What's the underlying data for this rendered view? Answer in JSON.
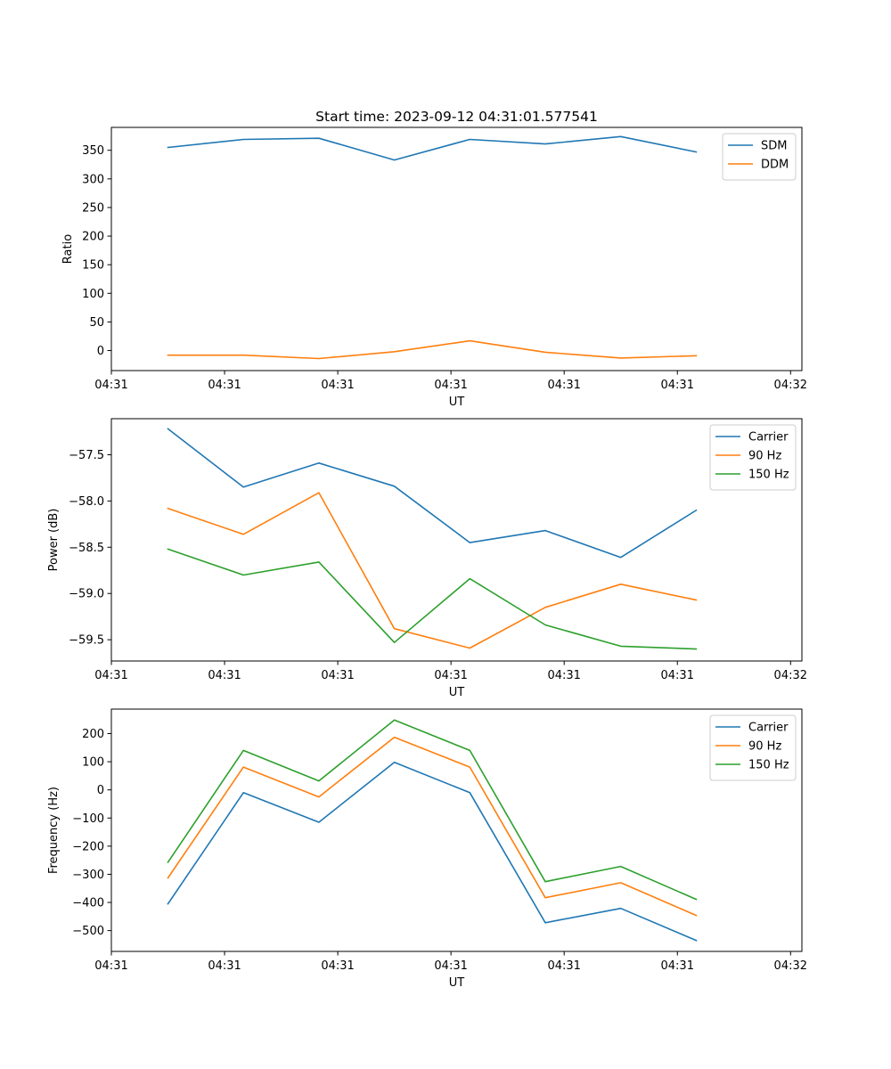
{
  "figure": {
    "title": "Start time: 2023-09-12 04:31:01.577541"
  },
  "chart_data": [
    {
      "type": "line",
      "title": "Start time: 2023-09-12 04:31:01.577541",
      "xlabel": "UT",
      "ylabel": "Ratio",
      "x": [
        1,
        2,
        3,
        4,
        5,
        6,
        7,
        8
      ],
      "xlim": [
        0.25,
        9.4
      ],
      "x_ticks": [
        0.25,
        1.75,
        3.25,
        4.75,
        6.25,
        7.75,
        9.25
      ],
      "x_tick_labels": [
        "04:31",
        "04:31",
        "04:31",
        "04:31",
        "04:31",
        "04:31",
        "04:32"
      ],
      "ylim": [
        -35,
        390
      ],
      "y_ticks": [
        0,
        50,
        100,
        150,
        200,
        250,
        300,
        350
      ],
      "y_tick_labels": [
        "0",
        "50",
        "100",
        "150",
        "200",
        "250",
        "300",
        "350"
      ],
      "legend_position": "top-right",
      "grid": false,
      "series": [
        {
          "name": "SDM",
          "color": "#1f77b4",
          "values": [
            355,
            369,
            371,
            333,
            369,
            361,
            374,
            347
          ]
        },
        {
          "name": "DDM",
          "color": "#ff7f0e",
          "values": [
            -8,
            -8,
            -14,
            -2,
            17,
            -3,
            -13,
            -9
          ]
        }
      ]
    },
    {
      "type": "line",
      "title": "",
      "xlabel": "UT",
      "ylabel": "Power (dB)",
      "x": [
        1,
        2,
        3,
        4,
        5,
        6,
        7,
        8
      ],
      "xlim": [
        0.25,
        9.4
      ],
      "x_ticks": [
        0.25,
        1.75,
        3.25,
        4.75,
        6.25,
        7.75,
        9.25
      ],
      "x_tick_labels": [
        "04:31",
        "04:31",
        "04:31",
        "04:31",
        "04:31",
        "04:31",
        "04:32"
      ],
      "ylim": [
        -59.73,
        -57.11
      ],
      "y_ticks": [
        -59.5,
        -59.0,
        -58.5,
        -58.0,
        -57.5
      ],
      "y_tick_labels": [
        "−59.5",
        "−59.0",
        "−58.5",
        "−58.0",
        "−57.5"
      ],
      "legend_position": "top-right",
      "grid": false,
      "series": [
        {
          "name": "Carrier",
          "color": "#1f77b4",
          "values": [
            -57.22,
            -57.85,
            -57.59,
            -57.84,
            -58.45,
            -58.32,
            -58.61,
            -58.1
          ]
        },
        {
          "name": "90 Hz",
          "color": "#ff7f0e",
          "values": [
            -58.08,
            -58.36,
            -57.91,
            -59.38,
            -59.59,
            -59.15,
            -58.9,
            -59.07
          ]
        },
        {
          "name": "150 Hz",
          "color": "#2ca02c",
          "values": [
            -58.52,
            -58.8,
            -58.66,
            -59.53,
            -58.84,
            -59.34,
            -59.57,
            -59.6
          ]
        }
      ]
    },
    {
      "type": "line",
      "title": "",
      "xlabel": "UT",
      "ylabel": "Frequency (Hz)",
      "x": [
        1,
        2,
        3,
        4,
        5,
        6,
        7,
        8
      ],
      "xlim": [
        0.25,
        9.4
      ],
      "x_ticks": [
        0.25,
        1.75,
        3.25,
        4.75,
        6.25,
        7.75,
        9.25
      ],
      "x_tick_labels": [
        "04:31",
        "04:31",
        "04:31",
        "04:31",
        "04:31",
        "04:31",
        "04:32"
      ],
      "ylim": [
        -574,
        287
      ],
      "y_ticks": [
        -500,
        -400,
        -300,
        -200,
        -100,
        0,
        100,
        200
      ],
      "y_tick_labels": [
        "−500",
        "−400",
        "−300",
        "−200",
        "−100",
        "0",
        "100",
        "200"
      ],
      "legend_position": "top-right",
      "grid": false,
      "series": [
        {
          "name": "Carrier",
          "color": "#1f77b4",
          "values": [
            -405,
            -10,
            -115,
            98,
            -10,
            -472,
            -421,
            -535
          ]
        },
        {
          "name": "90 Hz",
          "color": "#ff7f0e",
          "values": [
            -313,
            81,
            -25,
            187,
            81,
            -383,
            -330,
            -446
          ]
        },
        {
          "name": "150 Hz",
          "color": "#2ca02c",
          "values": [
            -257,
            140,
            32,
            248,
            140,
            -326,
            -272,
            -389
          ]
        }
      ]
    }
  ]
}
